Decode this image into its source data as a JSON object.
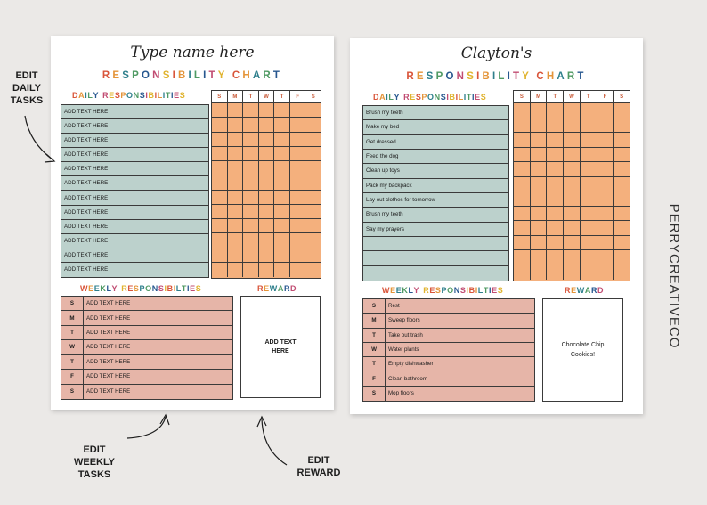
{
  "left_page": {
    "name_placeholder": "Type name here",
    "title": "RESPONSIBILITY CHART",
    "daily_heading": "DAILY RESPONSIBILITIES",
    "days": [
      "S",
      "M",
      "T",
      "W",
      "T",
      "F",
      "S"
    ],
    "daily_tasks": [
      "ADD TEXT HERE",
      "ADD TEXT HERE",
      "ADD TEXT HERE",
      "ADD TEXT HERE",
      "ADD TEXT HERE",
      "ADD TEXT HERE",
      "ADD TEXT HERE",
      "ADD TEXT HERE",
      "ADD TEXT HERE",
      "ADD TEXT HERE",
      "ADD TEXT HERE",
      "ADD TEXT HERE"
    ],
    "weekly_heading": "WEEKLY RESPONSIBILTIES",
    "weekly_rows": [
      {
        "day": "S",
        "task": "ADD TEXT HERE"
      },
      {
        "day": "M",
        "task": "ADD TEXT HERE"
      },
      {
        "day": "T",
        "task": "ADD TEXT HERE"
      },
      {
        "day": "W",
        "task": "ADD TEXT HERE"
      },
      {
        "day": "T",
        "task": "ADD TEXT HERE"
      },
      {
        "day": "F",
        "task": "ADD TEXT HERE"
      },
      {
        "day": "S",
        "task": "ADD TEXT HERE"
      }
    ],
    "reward_heading": "REWARD",
    "reward_text": "ADD TEXT HERE"
  },
  "right_page": {
    "name": "Clayton's",
    "title": "RESPONSIBILITY CHART",
    "daily_heading": "DAILY RESPONSIBILITIES",
    "days": [
      "S",
      "M",
      "T",
      "W",
      "T",
      "F",
      "S"
    ],
    "daily_tasks": [
      "Brush my teeth",
      "Make my bed",
      "Get dressed",
      "Feed the dog",
      "Clean up toys",
      "Pack my backpack",
      "Lay out clothes for tomorrow",
      "Brush my teeth",
      "Say my prayers",
      "",
      "",
      ""
    ],
    "weekly_heading": "WEEKLY RESPONSIBILTIES",
    "weekly_rows": [
      {
        "day": "S",
        "task": "Rest"
      },
      {
        "day": "M",
        "task": "Sweep floors"
      },
      {
        "day": "T",
        "task": "Take out trash"
      },
      {
        "day": "W",
        "task": "Water plants"
      },
      {
        "day": "T",
        "task": "Empty dishwasher"
      },
      {
        "day": "F",
        "task": "Clean bathroom"
      },
      {
        "day": "S",
        "task": "Mop floors"
      }
    ],
    "reward_heading": "REWARD",
    "reward_text": "Chocolate Chip Cookies!"
  },
  "brand": "PERRYCREATIVECO",
  "annotations": {
    "daily": "EDIT\nDAILY\nTASKS",
    "weekly": "EDIT\nWEEKLY\nTASKS",
    "reward": "EDIT\nREWARD"
  },
  "colors": {
    "background": "#ebe9e7",
    "daily_fill": "#bcd1cc",
    "grid_fill": "#f4b07d",
    "weekly_fill": "#e6b5a8",
    "letter_palette": [
      "#d9553a",
      "#e4953a",
      "#2e7f8c",
      "#4f9a63",
      "#27578f",
      "#c14c72",
      "#e0b32e"
    ]
  }
}
